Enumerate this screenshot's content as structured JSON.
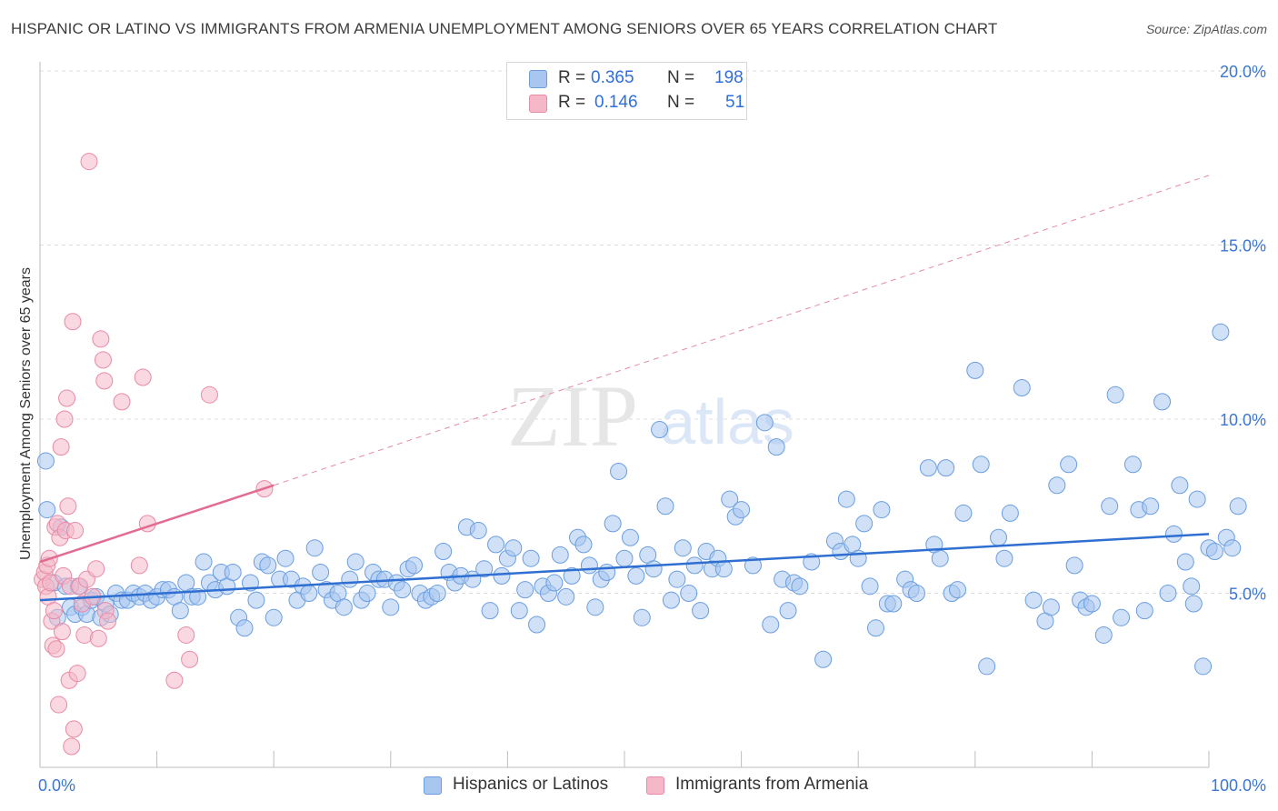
{
  "title": "HISPANIC OR LATINO VS IMMIGRANTS FROM ARMENIA UNEMPLOYMENT AMONG SENIORS OVER 65 YEARS CORRELATION CHART",
  "source": "Source: ZipAtlas.com",
  "watermark": {
    "zip": "ZIP",
    "atlas": "atlas"
  },
  "legend_top": {
    "rows": [
      {
        "r_label": "R = ",
        "r_value": "0.365",
        "n_label": "N = ",
        "n_value": "198",
        "color": "#a8c6f0"
      },
      {
        "r_label": "R = ",
        "r_value": "0.146",
        "n_label": "N = ",
        "n_value": "51",
        "color": "#f4b8c8"
      }
    ]
  },
  "legend_bottom": [
    {
      "label": "Hispanics or Latinos",
      "color": "#a8c6f0"
    },
    {
      "label": "Immigrants from Armenia",
      "color": "#f4b8c8"
    }
  ],
  "chart_data": {
    "type": "scatter",
    "xlabel": "",
    "ylabel": "Unemployment Among Seniors over 65 years",
    "xlim": [
      0,
      100
    ],
    "ylim": [
      0,
      20
    ],
    "x_tick_labels": [
      "0.0%",
      "100.0%"
    ],
    "y_tick_labels": [
      "5.0%",
      "10.0%",
      "15.0%",
      "20.0%"
    ],
    "y_ticks": [
      5,
      10,
      15,
      20
    ],
    "series": [
      {
        "name": "Hispanics or Latinos",
        "color": "#6a9ee0",
        "fill": "#a8c6f0",
        "R": 0.365,
        "N": 198,
        "trend": {
          "x0": 0,
          "y0": 4.8,
          "x1": 100,
          "y1": 6.7
        },
        "points": [
          [
            0.5,
            8.8
          ],
          [
            0.6,
            7.4
          ],
          [
            1.2,
            5.3
          ],
          [
            1.5,
            4.3
          ],
          [
            1.8,
            6.9
          ],
          [
            2.2,
            5.2
          ],
          [
            2.6,
            4.6
          ],
          [
            3.0,
            4.4
          ],
          [
            3.3,
            5.2
          ],
          [
            3.6,
            4.6
          ],
          [
            4.0,
            4.4
          ],
          [
            4.4,
            4.8
          ],
          [
            4.8,
            4.9
          ],
          [
            5.2,
            4.3
          ],
          [
            5.6,
            4.7
          ],
          [
            6.0,
            4.4
          ],
          [
            6.5,
            5.0
          ],
          [
            7.0,
            4.8
          ],
          [
            7.5,
            4.8
          ],
          [
            8.0,
            5.0
          ],
          [
            8.5,
            4.9
          ],
          [
            9.0,
            5.0
          ],
          [
            9.5,
            4.8
          ],
          [
            10.0,
            4.9
          ],
          [
            10.5,
            5.1
          ],
          [
            11.0,
            5.1
          ],
          [
            11.5,
            4.9
          ],
          [
            12.0,
            4.5
          ],
          [
            12.5,
            5.3
          ],
          [
            13.0,
            4.9
          ],
          [
            13.5,
            4.9
          ],
          [
            14.0,
            5.9
          ],
          [
            14.5,
            5.3
          ],
          [
            15.0,
            5.1
          ],
          [
            15.5,
            5.6
          ],
          [
            16.0,
            5.2
          ],
          [
            16.5,
            5.6
          ],
          [
            17.0,
            4.3
          ],
          [
            17.5,
            4.0
          ],
          [
            18.0,
            5.3
          ],
          [
            18.5,
            4.8
          ],
          [
            19.0,
            5.9
          ],
          [
            19.5,
            5.8
          ],
          [
            20.0,
            4.3
          ],
          [
            20.5,
            5.4
          ],
          [
            21.0,
            6.0
          ],
          [
            21.5,
            5.4
          ],
          [
            22.0,
            4.8
          ],
          [
            22.5,
            5.2
          ],
          [
            23.0,
            5.0
          ],
          [
            23.5,
            6.3
          ],
          [
            24.0,
            5.6
          ],
          [
            24.5,
            5.1
          ],
          [
            25.0,
            4.8
          ],
          [
            25.5,
            5.0
          ],
          [
            26.0,
            4.6
          ],
          [
            26.5,
            5.4
          ],
          [
            27.0,
            5.9
          ],
          [
            27.5,
            4.8
          ],
          [
            28.0,
            5.0
          ],
          [
            28.5,
            5.6
          ],
          [
            29.0,
            5.4
          ],
          [
            29.5,
            5.4
          ],
          [
            30.0,
            4.6
          ],
          [
            30.5,
            5.3
          ],
          [
            31.0,
            5.1
          ],
          [
            31.5,
            5.7
          ],
          [
            32.0,
            5.8
          ],
          [
            32.5,
            5.0
          ],
          [
            33.0,
            4.8
          ],
          [
            33.5,
            4.9
          ],
          [
            34.0,
            5.0
          ],
          [
            34.5,
            6.2
          ],
          [
            35.0,
            5.6
          ],
          [
            35.5,
            5.3
          ],
          [
            36.0,
            5.5
          ],
          [
            36.5,
            6.9
          ],
          [
            37.0,
            5.4
          ],
          [
            37.5,
            6.8
          ],
          [
            38.0,
            5.7
          ],
          [
            38.5,
            4.5
          ],
          [
            39.0,
            6.4
          ],
          [
            39.5,
            5.5
          ],
          [
            40.0,
            6.0
          ],
          [
            40.5,
            6.3
          ],
          [
            41.0,
            4.5
          ],
          [
            41.5,
            5.1
          ],
          [
            42.0,
            6.0
          ],
          [
            42.5,
            4.1
          ],
          [
            43.0,
            5.2
          ],
          [
            43.5,
            5.0
          ],
          [
            44.0,
            5.3
          ],
          [
            44.5,
            6.1
          ],
          [
            45.0,
            4.9
          ],
          [
            45.5,
            5.5
          ],
          [
            46.0,
            6.6
          ],
          [
            46.5,
            6.4
          ],
          [
            47.0,
            5.8
          ],
          [
            47.5,
            4.6
          ],
          [
            48.0,
            5.4
          ],
          [
            48.5,
            5.6
          ],
          [
            49.0,
            7.0
          ],
          [
            49.5,
            8.5
          ],
          [
            50.0,
            6.0
          ],
          [
            50.5,
            6.6
          ],
          [
            51.0,
            5.5
          ],
          [
            51.5,
            4.3
          ],
          [
            52.0,
            6.1
          ],
          [
            52.5,
            5.7
          ],
          [
            53.0,
            9.7
          ],
          [
            53.5,
            7.5
          ],
          [
            54.0,
            4.8
          ],
          [
            54.5,
            5.4
          ],
          [
            55.0,
            6.3
          ],
          [
            55.5,
            5.0
          ],
          [
            56.0,
            5.8
          ],
          [
            56.5,
            4.5
          ],
          [
            57.0,
            6.2
          ],
          [
            57.5,
            5.7
          ],
          [
            58.0,
            6.0
          ],
          [
            58.5,
            5.7
          ],
          [
            59.0,
            7.7
          ],
          [
            59.5,
            7.2
          ],
          [
            60.0,
            7.4
          ],
          [
            61.0,
            5.8
          ],
          [
            62.0,
            9.9
          ],
          [
            62.5,
            4.1
          ],
          [
            63.0,
            9.2
          ],
          [
            63.5,
            5.4
          ],
          [
            64.0,
            4.5
          ],
          [
            64.5,
            5.3
          ],
          [
            65.0,
            5.2
          ],
          [
            66.0,
            5.9
          ],
          [
            67.0,
            3.1
          ],
          [
            68.0,
            6.5
          ],
          [
            68.5,
            6.2
          ],
          [
            69.0,
            7.7
          ],
          [
            69.5,
            6.4
          ],
          [
            70.0,
            6.0
          ],
          [
            70.5,
            7.0
          ],
          [
            71.0,
            5.2
          ],
          [
            71.5,
            4.0
          ],
          [
            72.0,
            7.4
          ],
          [
            72.5,
            4.7
          ],
          [
            73.0,
            4.7
          ],
          [
            74.0,
            5.4
          ],
          [
            74.5,
            5.1
          ],
          [
            75.0,
            5.0
          ],
          [
            76.0,
            8.6
          ],
          [
            76.5,
            6.4
          ],
          [
            77.0,
            6.0
          ],
          [
            77.5,
            8.6
          ],
          [
            78.0,
            5.0
          ],
          [
            78.5,
            5.1
          ],
          [
            79.0,
            7.3
          ],
          [
            80.0,
            11.4
          ],
          [
            80.5,
            8.7
          ],
          [
            81.0,
            2.9
          ],
          [
            82.0,
            6.6
          ],
          [
            82.5,
            6.0
          ],
          [
            83.0,
            7.3
          ],
          [
            84.0,
            10.9
          ],
          [
            85.0,
            4.8
          ],
          [
            86.0,
            4.2
          ],
          [
            86.5,
            4.6
          ],
          [
            87.0,
            8.1
          ],
          [
            88.0,
            8.7
          ],
          [
            88.5,
            5.8
          ],
          [
            89.0,
            4.8
          ],
          [
            89.5,
            4.6
          ],
          [
            90.0,
            4.7
          ],
          [
            91.0,
            3.8
          ],
          [
            91.5,
            7.5
          ],
          [
            92.0,
            10.7
          ],
          [
            92.5,
            4.3
          ],
          [
            93.5,
            8.7
          ],
          [
            94.0,
            7.4
          ],
          [
            94.5,
            4.5
          ],
          [
            95.0,
            7.5
          ],
          [
            96.0,
            10.5
          ],
          [
            96.5,
            5.0
          ],
          [
            97.0,
            6.7
          ],
          [
            97.5,
            8.1
          ],
          [
            98.0,
            5.9
          ],
          [
            98.5,
            5.2
          ],
          [
            98.7,
            4.7
          ],
          [
            99.0,
            7.7
          ],
          [
            99.5,
            2.9
          ],
          [
            100.0,
            6.3
          ],
          [
            100.5,
            6.2
          ],
          [
            101.0,
            12.5
          ],
          [
            101.5,
            6.6
          ],
          [
            102.0,
            6.3
          ],
          [
            102.5,
            7.5
          ]
        ]
      },
      {
        "name": "Immigrants from Armenia",
        "color": "#e98aa5",
        "fill": "#f4b8c8",
        "R": 0.146,
        "N": 51,
        "trend": {
          "x0": 0,
          "y0": 5.9,
          "x1": 20,
          "y1": 8.1
        },
        "trend_extended": {
          "x0": 20,
          "y0": 8.1,
          "x1": 100,
          "y1": 17.0
        },
        "points": [
          [
            0.2,
            5.4
          ],
          [
            0.4,
            5.6
          ],
          [
            0.5,
            5.2
          ],
          [
            0.6,
            5.8
          ],
          [
            0.7,
            4.9
          ],
          [
            0.8,
            6.0
          ],
          [
            0.9,
            5.3
          ],
          [
            1.0,
            4.2
          ],
          [
            1.1,
            3.5
          ],
          [
            1.2,
            4.5
          ],
          [
            1.3,
            6.9
          ],
          [
            1.4,
            3.4
          ],
          [
            1.5,
            7.0
          ],
          [
            1.6,
            1.8
          ],
          [
            1.7,
            6.6
          ],
          [
            1.8,
            9.2
          ],
          [
            1.9,
            3.9
          ],
          [
            2.0,
            5.5
          ],
          [
            2.1,
            10.0
          ],
          [
            2.2,
            6.8
          ],
          [
            2.3,
            10.6
          ],
          [
            2.4,
            7.5
          ],
          [
            2.5,
            2.5
          ],
          [
            2.6,
            5.2
          ],
          [
            2.7,
            0.6
          ],
          [
            2.8,
            12.8
          ],
          [
            2.9,
            1.1
          ],
          [
            3.0,
            6.8
          ],
          [
            3.2,
            2.7
          ],
          [
            3.4,
            5.2
          ],
          [
            3.6,
            4.7
          ],
          [
            3.8,
            3.8
          ],
          [
            4.0,
            5.4
          ],
          [
            4.2,
            17.4
          ],
          [
            4.5,
            4.9
          ],
          [
            4.8,
            5.7
          ],
          [
            5.0,
            3.7
          ],
          [
            5.2,
            12.3
          ],
          [
            5.4,
            11.7
          ],
          [
            5.5,
            11.1
          ],
          [
            5.6,
            4.5
          ],
          [
            5.8,
            4.2
          ],
          [
            7.0,
            10.5
          ],
          [
            8.5,
            5.8
          ],
          [
            8.8,
            11.2
          ],
          [
            9.2,
            7.0
          ],
          [
            11.5,
            2.5
          ],
          [
            12.5,
            3.8
          ],
          [
            12.8,
            3.1
          ],
          [
            14.5,
            10.7
          ],
          [
            19.2,
            8.0
          ]
        ]
      }
    ]
  }
}
